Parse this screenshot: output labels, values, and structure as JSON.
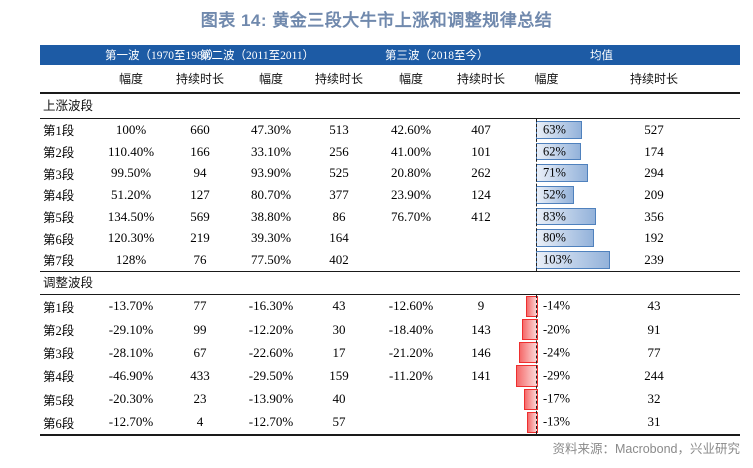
{
  "title": "图表 14: 黄金三段大牛市上涨和调整规律总结",
  "source_note": "资料来源：Macrobond，兴业研究",
  "colors": {
    "title": "#7089ad",
    "header_bg": "#1d5ba5",
    "header_text": "#ffffff",
    "positive_bar_border": "#4f81bd",
    "positive_bar_fill_light": "#e9eff8",
    "positive_bar_fill_dark": "#93b2da",
    "negative_bar_border": "#ee2f2f",
    "negative_bar_fill_light": "#fcdcdc",
    "negative_bar_fill_dark": "#f56a6a",
    "source_text": "#8a8a8a"
  },
  "chart_data": {
    "type": "table",
    "title": "图表 14: 黄金三段大牛市上涨和调整规律总结",
    "column_groups": [
      "第一波（1970至1980）",
      "第二波（2011至2011）",
      "第三波（2018至今）",
      "均值"
    ],
    "sub_headers": [
      "幅度",
      "持续时长",
      "幅度",
      "持续时长",
      "幅度",
      "持续时长",
      "幅度",
      "持续时长"
    ],
    "bar_unit": "%",
    "bar_axis_note": "均值幅度列以数据条显示，正值为蓝色向右，负值为红色向左，虚线为零轴",
    "sections": [
      {
        "label": "上涨波段",
        "rows": [
          {
            "seg": "第1段",
            "a1": "100%",
            "d1": "660",
            "a2": "47.30%",
            "d2": "513",
            "a3": "42.60%",
            "d3": "407",
            "ma": "63%",
            "mv": 63,
            "md": "527"
          },
          {
            "seg": "第2段",
            "a1": "110.40%",
            "d1": "166",
            "a2": "33.10%",
            "d2": "256",
            "a3": "41.00%",
            "d3": "101",
            "ma": "62%",
            "mv": 62,
            "md": "174"
          },
          {
            "seg": "第3段",
            "a1": "99.50%",
            "d1": "94",
            "a2": "93.90%",
            "d2": "525",
            "a3": "20.80%",
            "d3": "262",
            "ma": "71%",
            "mv": 71,
            "md": "294"
          },
          {
            "seg": "第4段",
            "a1": "51.20%",
            "d1": "127",
            "a2": "80.70%",
            "d2": "377",
            "a3": "23.90%",
            "d3": "124",
            "ma": "52%",
            "mv": 52,
            "md": "209"
          },
          {
            "seg": "第5段",
            "a1": "134.50%",
            "d1": "569",
            "a2": "38.80%",
            "d2": "86",
            "a3": "76.70%",
            "d3": "412",
            "ma": "83%",
            "mv": 83,
            "md": "356"
          },
          {
            "seg": "第6段",
            "a1": "120.30%",
            "d1": "219",
            "a2": "39.30%",
            "d2": "164",
            "a3": "",
            "d3": "",
            "ma": "80%",
            "mv": 80,
            "md": "192"
          },
          {
            "seg": "第7段",
            "a1": "128%",
            "d1": "76",
            "a2": "77.50%",
            "d2": "402",
            "a3": "",
            "d3": "",
            "ma": "103%",
            "mv": 103,
            "md": "239"
          }
        ]
      },
      {
        "label": "调整波段",
        "rows": [
          {
            "seg": "第1段",
            "a1": "-13.70%",
            "d1": "77",
            "a2": "-16.30%",
            "d2": "43",
            "a3": "-12.60%",
            "d3": "9",
            "ma": "-14%",
            "mv": -14,
            "md": "43"
          },
          {
            "seg": "第2段",
            "a1": "-29.10%",
            "d1": "99",
            "a2": "-12.20%",
            "d2": "30",
            "a3": "-18.40%",
            "d3": "143",
            "ma": "-20%",
            "mv": -20,
            "md": "91"
          },
          {
            "seg": "第3段",
            "a1": "-28.10%",
            "d1": "67",
            "a2": "-22.60%",
            "d2": "17",
            "a3": "-21.20%",
            "d3": "146",
            "ma": "-24%",
            "mv": -24,
            "md": "77"
          },
          {
            "seg": "第4段",
            "a1": "-46.90%",
            "d1": "433",
            "a2": "-29.50%",
            "d2": "159",
            "a3": "-11.20%",
            "d3": "141",
            "ma": "-29%",
            "mv": -29,
            "md": "244"
          },
          {
            "seg": "第5段",
            "a1": "-20.30%",
            "d1": "23",
            "a2": "-13.90%",
            "d2": "40",
            "a3": "",
            "d3": "",
            "ma": "-17%",
            "mv": -17,
            "md": "32"
          },
          {
            "seg": "第6段",
            "a1": "-12.70%",
            "d1": "4",
            "a2": "-12.70%",
            "d2": "57",
            "a3": "",
            "d3": "",
            "ma": "-13%",
            "mv": -13,
            "md": "31"
          }
        ]
      }
    ]
  }
}
